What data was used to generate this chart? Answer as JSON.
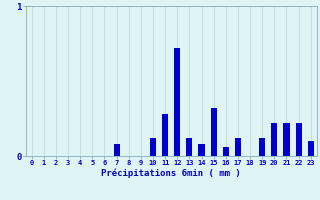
{
  "title": "",
  "xlabel": "Précipitations 6min ( mm )",
  "ylabel": "",
  "background_color": "#dff4f4",
  "bar_color": "#0000cc",
  "grid_color": "#c0dada",
  "axis_color": "#8aaabb",
  "text_color": "#0000cc",
  "ylim": [
    0,
    1.0
  ],
  "xlim": [
    -0.5,
    23.5
  ],
  "yticks": [
    0,
    1
  ],
  "xticks": [
    0,
    1,
    2,
    3,
    4,
    5,
    6,
    7,
    8,
    9,
    10,
    11,
    12,
    13,
    14,
    15,
    16,
    17,
    18,
    19,
    20,
    21,
    22,
    23
  ],
  "values": [
    0,
    0,
    0,
    0,
    0,
    0,
    0,
    0.08,
    0,
    0,
    0.12,
    0.28,
    0.72,
    0.12,
    0.08,
    0.32,
    0.06,
    0.12,
    0,
    0.12,
    0.22,
    0.22,
    0.22,
    0.1
  ],
  "figsize": [
    3.2,
    2.0
  ],
  "dpi": 100
}
